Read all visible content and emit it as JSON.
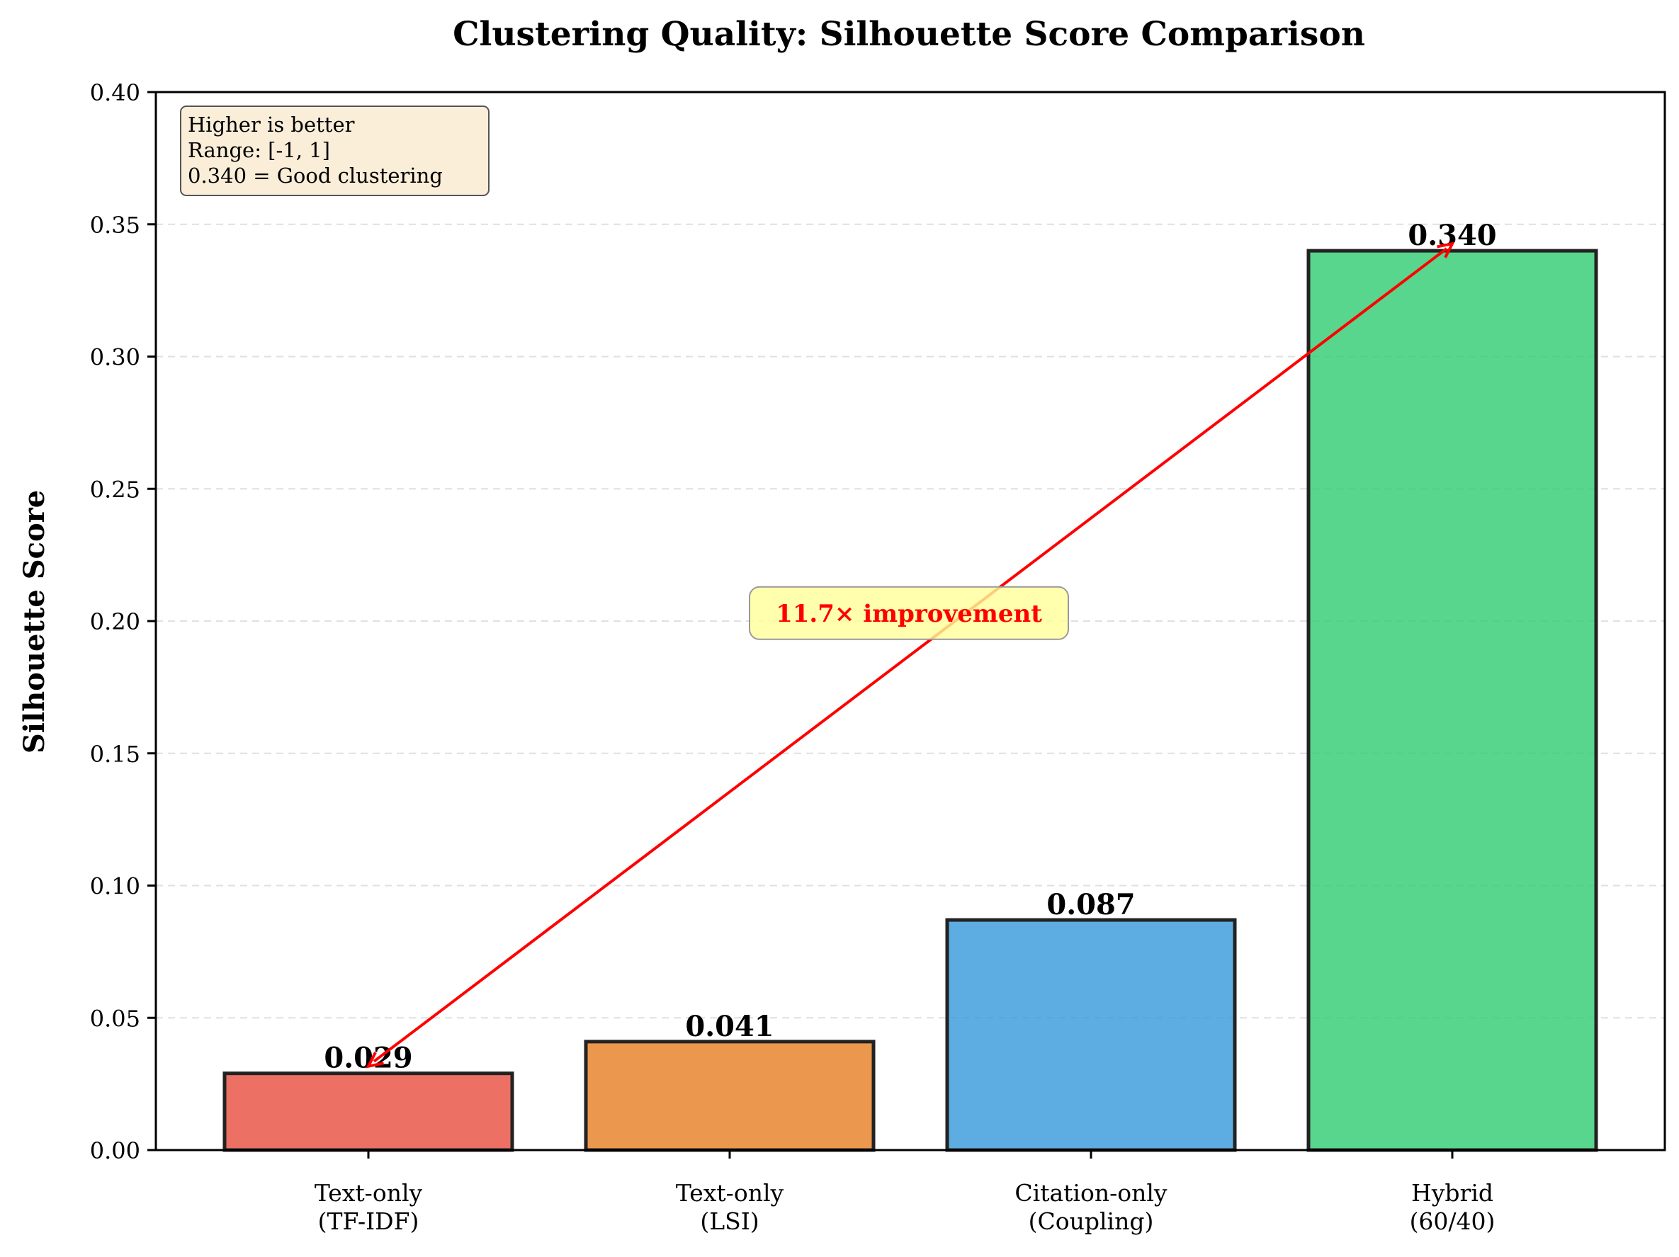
{
  "chart_data": {
    "type": "bar",
    "title": "Clustering Quality: Silhouette Score Comparison",
    "xlabel": "",
    "ylabel": "Silhouette Score",
    "ylim": [
      0,
      0.4
    ],
    "yticks": [
      0.0,
      0.05,
      0.1,
      0.15,
      0.2,
      0.25,
      0.3,
      0.35,
      0.4
    ],
    "ytick_labels": [
      "0.00",
      "0.05",
      "0.10",
      "0.15",
      "0.20",
      "0.25",
      "0.30",
      "0.35",
      "0.40"
    ],
    "grid": "y, dashed",
    "categories": [
      [
        "Text-only",
        "(TF-IDF)"
      ],
      [
        "Text-only",
        "(LSI)"
      ],
      [
        "Citation-only",
        "(Coupling)"
      ],
      [
        "Hybrid",
        "(60/40)"
      ]
    ],
    "values": [
      0.029,
      0.041,
      0.087,
      0.34
    ],
    "value_labels": [
      "0.029",
      "0.041",
      "0.087",
      "0.340"
    ],
    "colors": [
      "#e74c3c",
      "#e67e22",
      "#3498db",
      "#2ecc71"
    ],
    "annotation": {
      "text": "11.7× improvement",
      "color": "#ff0000",
      "box_color": "#ffff99",
      "from_category": 0,
      "from_value": 0.029,
      "to_category": 3,
      "to_value": 0.34,
      "text_y_value": 0.203
    },
    "info_box": {
      "lines": [
        "Higher is better",
        "Range: [-1, 1]",
        "0.340 = Good clustering"
      ],
      "placement": "top-left",
      "box_color": "#f5deb3"
    }
  }
}
